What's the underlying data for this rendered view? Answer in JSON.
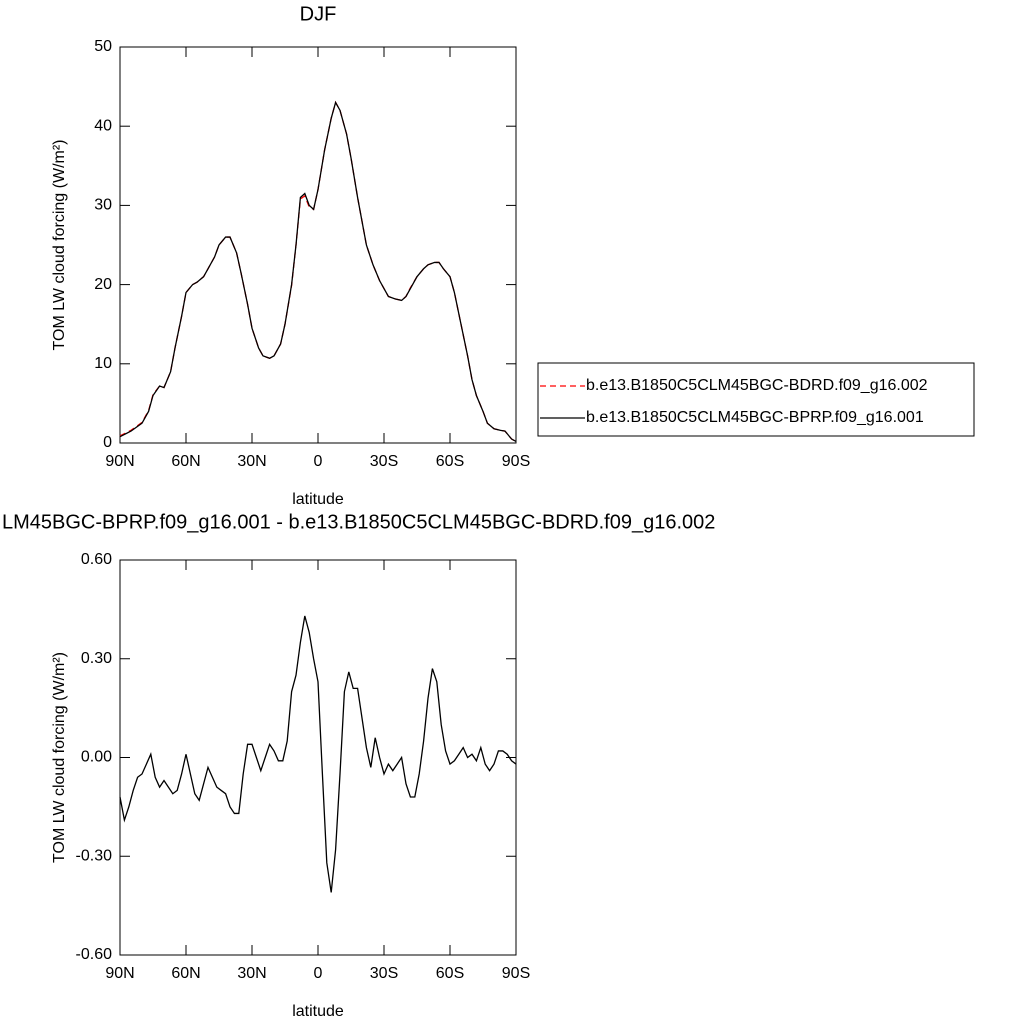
{
  "chart_data": [
    {
      "type": "line",
      "title": "DJF",
      "xlabel": "latitude",
      "ylabel": "TOM LW cloud forcing (W/m²)",
      "x": [
        90,
        85,
        80,
        77,
        75,
        72,
        70,
        67,
        65,
        62,
        60,
        57,
        55,
        52,
        50,
        47,
        45,
        42,
        40,
        37,
        35,
        32,
        30,
        27,
        25,
        22,
        20,
        17,
        15,
        12,
        10,
        8,
        6,
        4,
        2,
        0,
        -3,
        -6,
        -8,
        -10,
        -13,
        -15,
        -18,
        -20,
        -22,
        -25,
        -28,
        -30,
        -32,
        -35,
        -38,
        -40,
        -42,
        -45,
        -48,
        -50,
        -53,
        -55,
        -57,
        -60,
        -62,
        -65,
        -68,
        -70,
        -72,
        -75,
        -77,
        -80,
        -83,
        -85,
        -88,
        -90
      ],
      "xlim": [
        90,
        -90
      ],
      "xticks": [
        {
          "value": 90,
          "label": "90N"
        },
        {
          "value": 60,
          "label": "60N"
        },
        {
          "value": 30,
          "label": "30N"
        },
        0,
        {
          "value": -30,
          "label": "30S"
        },
        {
          "value": -60,
          "label": "60S"
        },
        {
          "value": -90,
          "label": "90S"
        }
      ],
      "ylim": [
        0,
        50
      ],
      "yticks": [
        0,
        10,
        20,
        30,
        40,
        50
      ],
      "legend": "right",
      "series": [
        {
          "name": "b.e13.B1850C5CLM45BGC-BDRD.f09_g16.002",
          "color": "#ff0000",
          "line_style": "dashed",
          "values": [
            0.9,
            1.6,
            2.6,
            4.1,
            6.1,
            7.2,
            7.0,
            9.0,
            12.0,
            16.0,
            19.0,
            20.0,
            20.3,
            21.0,
            22.0,
            23.5,
            25.0,
            26.0,
            26.0,
            24.0,
            21.5,
            17.5,
            14.5,
            12.0,
            11.0,
            10.7,
            11.0,
            12.5,
            15.0,
            19.9,
            25.0,
            30.8,
            31.2,
            29.8,
            29.5,
            32.0,
            37.0,
            41.0,
            43.0,
            42.0,
            39.0,
            36.0,
            31.0,
            28.0,
            25.0,
            22.5,
            20.5,
            19.5,
            18.5,
            18.2,
            18.0,
            18.5,
            19.6,
            21.0,
            22.0,
            22.5,
            22.8,
            22.8,
            22.0,
            21.0,
            19.0,
            15.0,
            11.0,
            8.0,
            6.0,
            4.0,
            2.5,
            1.8,
            1.6,
            1.5,
            0.5,
            0.2
          ]
        },
        {
          "name": "b.e13.B1850C5CLM45BGC-BPRP.f09_g16.001",
          "color": "#000000",
          "line_style": "solid",
          "values": [
            0.8,
            1.5,
            2.5,
            4.0,
            6.0,
            7.2,
            7.0,
            9.0,
            12.0,
            16.0,
            19.0,
            20.0,
            20.3,
            21.0,
            22.0,
            23.5,
            25.0,
            26.0,
            26.0,
            24.0,
            21.5,
            17.5,
            14.5,
            12.0,
            11.0,
            10.7,
            11.0,
            12.5,
            15.0,
            20.0,
            25.0,
            31.0,
            31.5,
            30.0,
            29.5,
            32.0,
            37.0,
            41.0,
            43.0,
            42.0,
            39.0,
            36.0,
            31.0,
            28.0,
            25.0,
            22.5,
            20.5,
            19.5,
            18.5,
            18.2,
            18.0,
            18.5,
            19.5,
            21.0,
            22.0,
            22.5,
            22.8,
            22.8,
            22.0,
            21.0,
            19.0,
            15.0,
            11.0,
            8.0,
            6.0,
            4.0,
            2.5,
            1.8,
            1.6,
            1.5,
            0.5,
            0.2
          ]
        }
      ]
    },
    {
      "type": "line",
      "title": "LM45BGC-BPRP.f09_g16.001 - b.e13.B1850C5CLM45BGC-BDRD.f09_g16.002",
      "xlabel": "latitude",
      "ylabel": "TOM LW cloud forcing (W/m²)",
      "x": [
        90,
        88,
        86,
        84,
        82,
        80,
        78,
        76,
        74,
        72,
        70,
        68,
        66,
        64,
        62,
        60,
        58,
        56,
        54,
        52,
        50,
        48,
        46,
        44,
        42,
        40,
        38,
        36,
        34,
        32,
        30,
        28,
        26,
        24,
        22,
        20,
        18,
        16,
        14,
        12,
        10,
        8,
        6,
        4,
        2,
        0,
        -2,
        -4,
        -6,
        -8,
        -10,
        -12,
        -14,
        -16,
        -18,
        -20,
        -22,
        -24,
        -26,
        -28,
        -30,
        -32,
        -34,
        -36,
        -38,
        -40,
        -42,
        -44,
        -46,
        -48,
        -50,
        -52,
        -54,
        -56,
        -58,
        -60,
        -62,
        -64,
        -66,
        -68,
        -70,
        -72,
        -74,
        -76,
        -78,
        -80,
        -82,
        -84,
        -86,
        -88,
        -90
      ],
      "xlim": [
        90,
        -90
      ],
      "xticks": [
        {
          "value": 90,
          "label": "90N"
        },
        {
          "value": 60,
          "label": "60N"
        },
        {
          "value": 30,
          "label": "30N"
        },
        0,
        {
          "value": -30,
          "label": "30S"
        },
        {
          "value": -60,
          "label": "60S"
        },
        {
          "value": -90,
          "label": "90S"
        }
      ],
      "ylim": [
        -0.6,
        0.6
      ],
      "yticks": [
        {
          "value": -0.6,
          "label": "-0.60"
        },
        {
          "value": -0.3,
          "label": "-0.30"
        },
        {
          "value": 0,
          "label": "0.00"
        },
        {
          "value": 0.3,
          "label": "0.30"
        },
        {
          "value": 0.6,
          "label": "0.60"
        }
      ],
      "series": [
        {
          "color": "#000000",
          "line_style": "solid",
          "values": [
            -0.12,
            -0.19,
            -0.15,
            -0.1,
            -0.06,
            -0.05,
            -0.02,
            0.01,
            -0.06,
            -0.09,
            -0.07,
            -0.09,
            -0.11,
            -0.1,
            -0.05,
            0.01,
            -0.05,
            -0.11,
            -0.13,
            -0.08,
            -0.03,
            -0.06,
            -0.09,
            -0.1,
            -0.11,
            -0.15,
            -0.17,
            -0.17,
            -0.05,
            0.04,
            0.04,
            0.0,
            -0.04,
            0.0,
            0.04,
            0.02,
            -0.01,
            -0.01,
            0.05,
            0.2,
            0.25,
            0.35,
            0.43,
            0.38,
            0.3,
            0.23,
            -0.05,
            -0.32,
            -0.41,
            -0.28,
            -0.05,
            0.2,
            0.26,
            0.21,
            0.21,
            0.12,
            0.03,
            -0.03,
            0.06,
            0.0,
            -0.05,
            -0.02,
            -0.04,
            -0.02,
            0.0,
            -0.08,
            -0.12,
            -0.12,
            -0.05,
            0.05,
            0.18,
            0.27,
            0.23,
            0.1,
            0.02,
            -0.02,
            -0.01,
            0.01,
            0.03,
            0.0,
            0.01,
            -0.01,
            0.03,
            -0.02,
            -0.04,
            -0.02,
            0.02,
            0.02,
            0.01,
            -0.01,
            -0.02
          ]
        }
      ]
    }
  ]
}
